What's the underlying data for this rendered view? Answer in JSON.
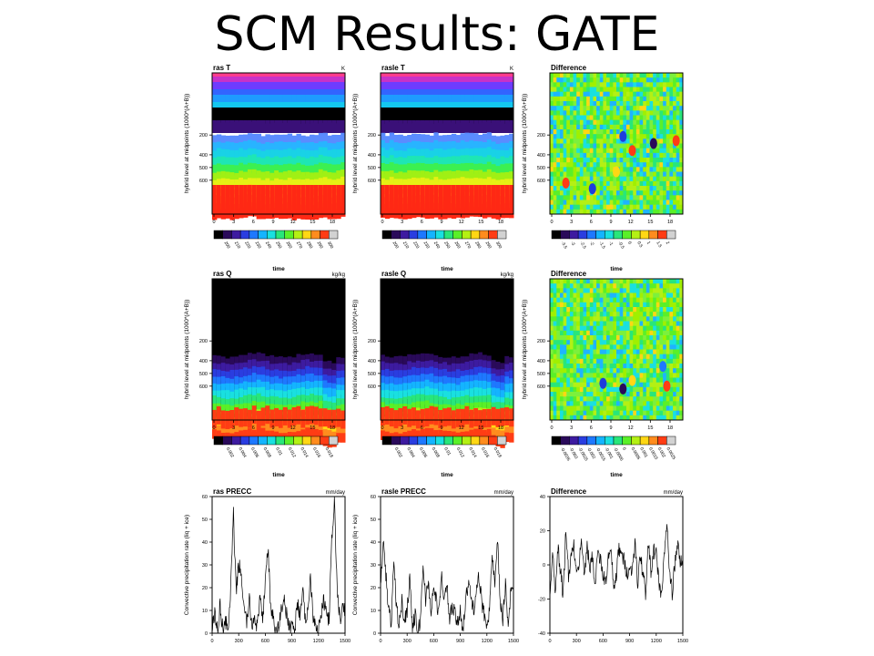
{
  "title": "SCM Results: GATE",
  "colors": {
    "T_colormap": [
      "#000000",
      "#2a0a5a",
      "#3d1ba0",
      "#2a3de0",
      "#1e78ff",
      "#14b4ff",
      "#19e0e0",
      "#28e67a",
      "#5af028",
      "#b4f014",
      "#ffd714",
      "#ff8c1e",
      "#ff3c14",
      "#d2d2d2"
    ],
    "Q_colormap": [
      "#000000",
      "#2a0a5a",
      "#3d1ba0",
      "#2a3de0",
      "#1e78ff",
      "#14b4ff",
      "#19e0e0",
      "#28e67a",
      "#5af028",
      "#b4f014",
      "#ffd714",
      "#ff8c1e",
      "#ff3c14",
      "#d2d2d2"
    ],
    "diff_colormap": [
      "#000000",
      "#2a0a5a",
      "#3d1ba0",
      "#2a3de0",
      "#1e78ff",
      "#14b4ff",
      "#19e0e0",
      "#28e67a",
      "#5af028",
      "#b4f014",
      "#ffd714",
      "#ff8c1e",
      "#ff3c14",
      "#d2d2d2"
    ]
  },
  "chart_data": [
    {
      "type": "heatmap",
      "id": "ras-T",
      "title": "ras T",
      "units": "K",
      "xlabel": "time",
      "ylabel": "hybrid level at midpoints (1000*(A+B))",
      "xticks": [
        "0",
        "3",
        "6",
        "9",
        "12",
        "15",
        "18"
      ],
      "yticks": [
        "200",
        "400",
        "500",
        "600"
      ],
      "colorbar_labels": [
        "200",
        "210",
        "220",
        "230",
        "240",
        "250",
        "260",
        "270",
        "280",
        "290",
        "300"
      ]
    },
    {
      "type": "heatmap",
      "id": "rasle-T",
      "title": "rasle T",
      "units": "K",
      "xlabel": "time",
      "ylabel": "hybrid level at midpoints (1000*(A+B))",
      "xticks": [
        "0",
        "3",
        "6",
        "9",
        "12",
        "15",
        "18"
      ],
      "yticks": [
        "200",
        "400",
        "500",
        "600"
      ],
      "colorbar_labels": [
        "200",
        "210",
        "220",
        "230",
        "240",
        "250",
        "260",
        "270",
        "280",
        "290",
        "300"
      ]
    },
    {
      "type": "heatmap",
      "id": "diff-T",
      "title": "Difference",
      "units": "",
      "xlabel": "time",
      "ylabel": "hybrid level at midpoints (1000*(A+B))",
      "xticks": [
        "0",
        "3",
        "6",
        "9",
        "12",
        "15",
        "18"
      ],
      "yticks": [
        "200",
        "400",
        "500",
        "600"
      ],
      "colorbar_labels": [
        "-3.5",
        "-3",
        "-2.5",
        "-2",
        "-1.5",
        "-1",
        "-0.5",
        "0",
        "0.5",
        "1",
        "1.5",
        "2"
      ]
    },
    {
      "type": "heatmap",
      "id": "ras-Q",
      "title": "ras Q",
      "units": "kg/kg",
      "xlabel": "time",
      "ylabel": "hybrid level at midpoints (1000*(A+B))",
      "xticks": [
        "0",
        "3",
        "6",
        "9",
        "12",
        "15",
        "18"
      ],
      "yticks": [
        "200",
        "400",
        "500",
        "600"
      ],
      "colorbar_labels": [
        "0.002",
        "0.004",
        "0.006",
        "0.008",
        "0.01",
        "0.012",
        "0.014",
        "0.016",
        "0.018"
      ]
    },
    {
      "type": "heatmap",
      "id": "rasle-Q",
      "title": "rasle Q",
      "units": "kg/kg",
      "xlabel": "time",
      "ylabel": "hybrid level at midpoints (1000*(A+B))",
      "xticks": [
        "0",
        "3",
        "6",
        "9",
        "12",
        "15",
        "18"
      ],
      "yticks": [
        "200",
        "400",
        "500",
        "600"
      ],
      "colorbar_labels": [
        "0.002",
        "0.004",
        "0.006",
        "0.008",
        "0.01",
        "0.012",
        "0.014",
        "0.016",
        "0.018"
      ]
    },
    {
      "type": "heatmap",
      "id": "diff-Q",
      "title": "Difference",
      "units": "",
      "xlabel": "time",
      "ylabel": "hybrid level at midpoints (1000*(A+B))",
      "xticks": [
        "0",
        "3",
        "6",
        "9",
        "12",
        "15",
        "18"
      ],
      "yticks": [
        "200",
        "400",
        "500",
        "600"
      ],
      "colorbar_labels": [
        "-0.0035",
        "-0.003",
        "-0.0025",
        "-0.002",
        "-0.0015",
        "-0.001",
        "-0.0005",
        "0",
        "0.0005",
        "0.001",
        "0.0015",
        "0.002",
        "0.0025"
      ]
    },
    {
      "type": "line",
      "id": "ras-PRECC",
      "title": "ras PRECC",
      "units": "mm/day",
      "xlabel": "time",
      "ylabel": "Convective precipitation rate (liq + ice)",
      "xticks": [
        "0",
        "300",
        "600",
        "900",
        "1200",
        "1500"
      ],
      "yticks": [
        "0",
        "10",
        "20",
        "30",
        "40",
        "50",
        "60"
      ],
      "xlim": [
        0,
        1500
      ],
      "ylim": [
        0,
        60
      ],
      "x": [
        0,
        30,
        60,
        90,
        120,
        150,
        180,
        210,
        240,
        270,
        300,
        330,
        360,
        390,
        420,
        450,
        480,
        510,
        540,
        570,
        600,
        630,
        660,
        690,
        720,
        750,
        780,
        810,
        840,
        870,
        900,
        930,
        960,
        990,
        1020,
        1050,
        1080,
        1110,
        1140,
        1170,
        1200,
        1230,
        1260,
        1290,
        1320,
        1350,
        1380,
        1410,
        1440,
        1470
      ],
      "y": [
        3,
        8,
        1,
        12,
        2,
        6,
        0,
        20,
        52,
        18,
        30,
        26,
        10,
        5,
        14,
        3,
        8,
        2,
        16,
        4,
        24,
        38,
        12,
        6,
        0,
        3,
        10,
        16,
        8,
        2,
        5,
        0,
        14,
        8,
        19,
        6,
        10,
        25,
        8,
        4,
        2,
        8,
        14,
        9,
        6,
        40,
        58,
        20,
        6,
        10
      ]
    },
    {
      "type": "line",
      "id": "rasle-PRECC",
      "title": "rasle PRECC",
      "units": "mm/day",
      "xlabel": "time",
      "ylabel": "Convective precipitation rate (liq + ice)",
      "xticks": [
        "0",
        "300",
        "600",
        "900",
        "1200",
        "1500"
      ],
      "yticks": [
        "0",
        "10",
        "20",
        "30",
        "40",
        "50",
        "60"
      ],
      "xlim": [
        0,
        1500
      ],
      "ylim": [
        0,
        60
      ],
      "x": [
        0,
        30,
        60,
        90,
        120,
        150,
        180,
        210,
        240,
        270,
        300,
        330,
        360,
        390,
        420,
        450,
        480,
        510,
        540,
        570,
        600,
        630,
        660,
        690,
        720,
        750,
        780,
        810,
        840,
        870,
        900,
        930,
        960,
        990,
        1020,
        1050,
        1080,
        1110,
        1140,
        1170,
        1200,
        1230,
        1260,
        1290,
        1320,
        1350,
        1380,
        1410,
        1440,
        1470
      ],
      "y": [
        20,
        40,
        26,
        10,
        5,
        30,
        12,
        3,
        14,
        6,
        10,
        25,
        2,
        8,
        0,
        6,
        30,
        15,
        22,
        10,
        20,
        14,
        9,
        25,
        15,
        20,
        6,
        12,
        8,
        4,
        10,
        2,
        14,
        22,
        16,
        10,
        20,
        24,
        14,
        8,
        5,
        10,
        35,
        20,
        40,
        14,
        6,
        22,
        4,
        18
      ]
    },
    {
      "type": "line",
      "id": "diff-PRECC",
      "title": "Difference",
      "units": "mm/day",
      "xlabel": "time",
      "ylabel": "",
      "xticks": [
        "0",
        "300",
        "600",
        "900",
        "1200",
        "1500"
      ],
      "yticks": [
        "-40",
        "-20",
        "0",
        "20",
        "40"
      ],
      "xlim": [
        0,
        1500
      ],
      "ylim": [
        -40,
        40
      ],
      "x": [
        0,
        30,
        60,
        90,
        120,
        150,
        180,
        210,
        240,
        270,
        300,
        330,
        360,
        390,
        420,
        450,
        480,
        510,
        540,
        570,
        600,
        630,
        660,
        690,
        720,
        750,
        780,
        810,
        840,
        870,
        900,
        930,
        960,
        990,
        1020,
        1050,
        1080,
        1110,
        1140,
        1170,
        1200,
        1230,
        1260,
        1290,
        1320,
        1350,
        1380,
        1410,
        1440,
        1470
      ],
      "y": [
        -16,
        8,
        -14,
        10,
        -3,
        -18,
        20,
        -6,
        4,
        12,
        -8,
        2,
        14,
        -5,
        10,
        -2,
        6,
        -12,
        8,
        2,
        -6,
        -10,
        4,
        8,
        -14,
        -6,
        10,
        5,
        2,
        -4,
        -4,
        -2,
        14,
        -12,
        6,
        -5,
        -16,
        12,
        -3,
        8,
        6,
        -10,
        -18,
        4,
        26,
        -5,
        -16,
        0,
        12,
        2
      ]
    }
  ]
}
